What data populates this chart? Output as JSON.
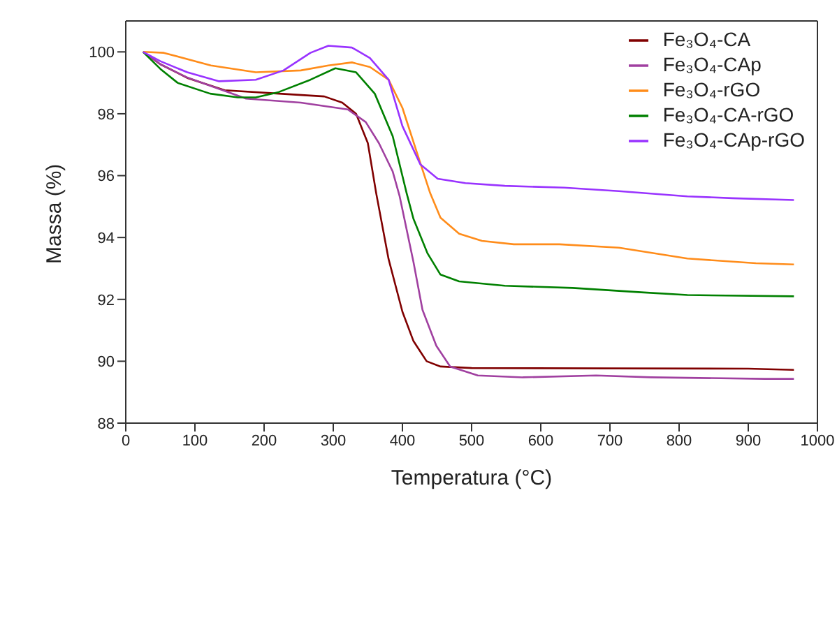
{
  "chart_data": {
    "type": "line",
    "xlabel": "Temperatura (°C)",
    "ylabel": "Massa (%)",
    "xlim": [
      0,
      1000
    ],
    "xticks": [
      0,
      100,
      200,
      300,
      400,
      500,
      600,
      700,
      800,
      900,
      1000
    ],
    "ylim": [
      88,
      101
    ],
    "yticks": [
      88,
      90,
      92,
      94,
      96,
      98,
      100
    ],
    "grid": false,
    "legend": "top right",
    "marker": "none",
    "line_style": "solid",
    "series": [
      {
        "name": "Fe₃O₄-CA",
        "color": "#800000",
        "x": [
          25,
          50,
          90,
          143,
          222,
          287,
          313,
          333,
          350,
          362,
          380,
          400,
          416,
          435,
          455,
          500,
          700,
          900,
          966
        ],
        "values": [
          100,
          99.6,
          99.15,
          98.76,
          98.65,
          98.56,
          98.36,
          98.0,
          97.05,
          95.44,
          93.3,
          91.6,
          90.65,
          90.0,
          89.83,
          89.78,
          89.77,
          89.76,
          89.72
        ]
      },
      {
        "name": "Fe₃O₄-CAp",
        "color": "#a040a0",
        "x": [
          25,
          50,
          89,
          174,
          253,
          321,
          347,
          366,
          386,
          396,
          416,
          429,
          449,
          469,
          509,
          574,
          680,
          759,
          924,
          966
        ],
        "values": [
          100,
          99.6,
          99.17,
          98.49,
          98.36,
          98.14,
          97.73,
          97.05,
          96.13,
          95.33,
          93.2,
          91.66,
          90.5,
          89.83,
          89.54,
          89.48,
          89.54,
          89.48,
          89.43,
          89.43
        ]
      },
      {
        "name": "Fe₃O₄-rGO",
        "color": "#ff8c1a",
        "x": [
          25,
          55,
          123,
          188,
          253,
          293,
          327,
          353,
          380,
          400,
          420,
          440,
          455,
          482,
          515,
          561,
          627,
          713,
          812,
          911,
          966
        ],
        "values": [
          100,
          99.97,
          99.56,
          99.34,
          99.4,
          99.56,
          99.66,
          99.51,
          99.1,
          98.19,
          96.81,
          95.44,
          94.64,
          94.12,
          93.89,
          93.78,
          93.78,
          93.67,
          93.32,
          93.17,
          93.13
        ]
      },
      {
        "name": "Fe₃O₄-CA-rGO",
        "color": "#008000",
        "x": [
          25,
          50,
          75,
          122,
          162,
          188,
          221,
          267,
          303,
          333,
          360,
          386,
          406,
          416,
          436,
          455,
          482,
          548,
          646,
          745,
          812,
          966
        ],
        "values": [
          100,
          99.45,
          99.0,
          98.65,
          98.53,
          98.53,
          98.7,
          99.1,
          99.47,
          99.34,
          98.65,
          97.27,
          95.44,
          94.6,
          93.5,
          92.8,
          92.58,
          92.44,
          92.37,
          92.23,
          92.14,
          92.1
        ]
      },
      {
        "name": "Fe₃O₄-CAp-rGO",
        "color": "#9933ff",
        "x": [
          25,
          50,
          89,
          135,
          188,
          228,
          267,
          293,
          327,
          353,
          380,
          400,
          426,
          451,
          491,
          548,
          634,
          713,
          812,
          877,
          966
        ],
        "values": [
          100,
          99.7,
          99.34,
          99.05,
          99.1,
          99.4,
          99.97,
          100.2,
          100.14,
          99.8,
          99.1,
          97.6,
          96.36,
          95.9,
          95.76,
          95.67,
          95.61,
          95.5,
          95.33,
          95.27,
          95.21
        ]
      }
    ]
  }
}
